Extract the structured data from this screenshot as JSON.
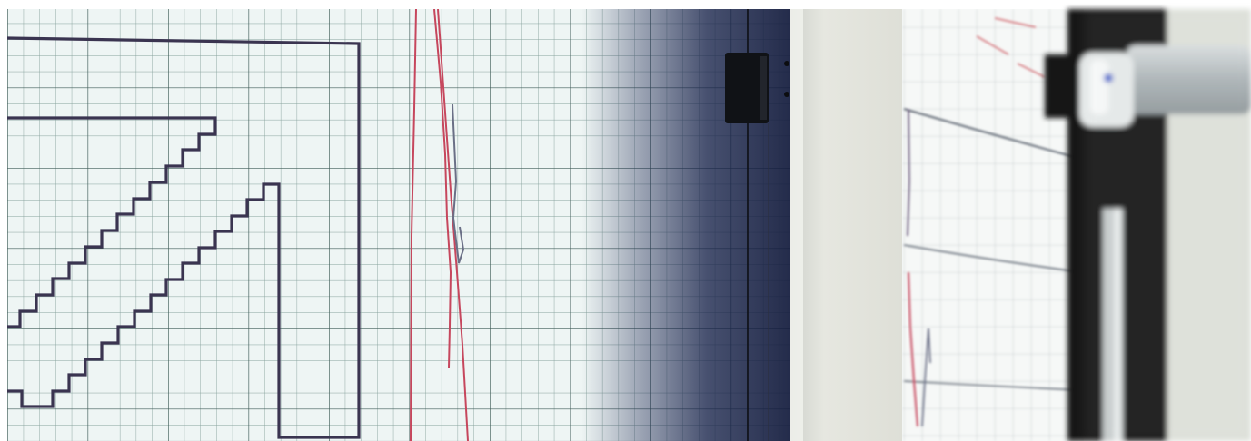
{
  "photo": {
    "subject": "",
    "colors": {
      "paper": "#eef5f4",
      "grid_minor": "#7f9a95",
      "grid_major": "#3f5b57",
      "trace_dark": "#3a3450",
      "trace_red": "#c6475d",
      "trace_gray": "#6a6f86",
      "shadow": "#1d2752",
      "wall": "#e3e4dc",
      "roller_black": "#151515",
      "roller_metal": "#b9c0c2",
      "accent_red": "#d42a2a",
      "accent_blue": "#2a55c9"
    }
  }
}
